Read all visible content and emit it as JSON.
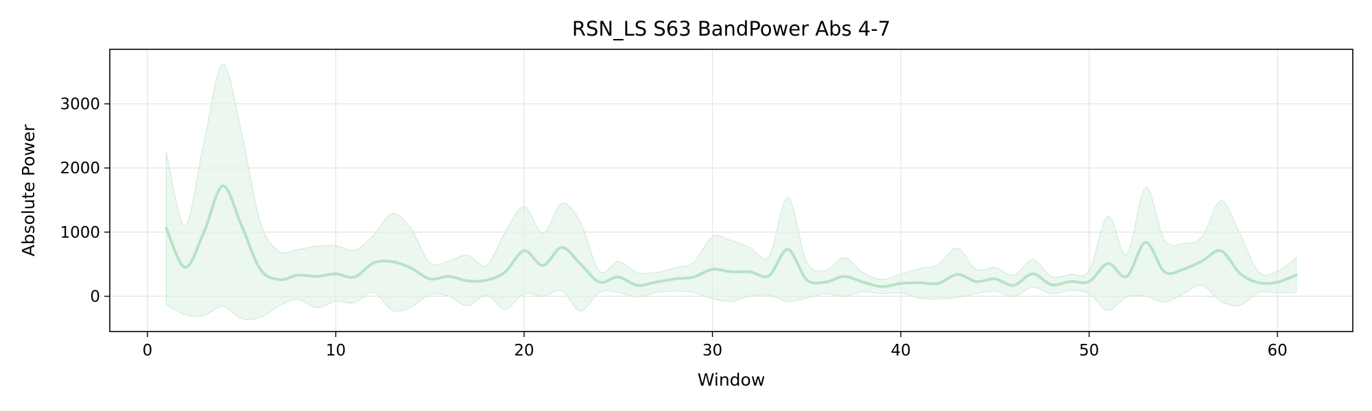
{
  "chart_data": {
    "type": "line",
    "title": "RSN_LS S63 BandPower Abs 4-7",
    "xlabel": "Window",
    "ylabel": "Absolute Power",
    "xlim": [
      -2,
      64
    ],
    "ylim": [
      -550,
      3850
    ],
    "xticks": [
      0,
      10,
      20,
      30,
      40,
      50,
      60
    ],
    "yticks": [
      0,
      1000,
      2000,
      3000
    ],
    "grid": true,
    "legend": "none",
    "series": [
      {
        "color": "#b5e3c5",
        "band_color": "#dff2e5",
        "x": [
          1,
          2,
          3,
          4,
          5,
          6,
          7,
          8,
          9,
          10,
          11,
          12,
          13,
          14,
          15,
          16,
          17,
          18,
          19,
          20,
          21,
          22,
          23,
          24,
          25,
          26,
          27,
          28,
          29,
          30,
          31,
          32,
          33,
          34,
          35,
          36,
          37,
          38,
          39,
          40,
          41,
          42,
          43,
          44,
          45,
          46,
          47,
          48,
          49,
          50,
          51,
          52,
          53,
          54,
          55,
          56,
          57,
          58,
          59,
          60,
          61
        ],
        "mean": [
          1060,
          450,
          1000,
          1720,
          1100,
          420,
          260,
          330,
          310,
          350,
          300,
          520,
          540,
          440,
          270,
          310,
          240,
          250,
          380,
          710,
          480,
          760,
          500,
          220,
          300,
          170,
          220,
          270,
          300,
          420,
          380,
          380,
          320,
          730,
          260,
          220,
          310,
          220,
          150,
          200,
          210,
          200,
          340,
          230,
          270,
          170,
          350,
          180,
          230,
          230,
          510,
          310,
          840,
          380,
          420,
          550,
          710,
          360,
          210,
          220,
          330
        ],
        "upper": [
          2250,
          1100,
          2400,
          3620,
          2550,
          1150,
          700,
          730,
          780,
          790,
          720,
          950,
          1290,
          1050,
          520,
          550,
          640,
          480,
          1000,
          1400,
          980,
          1450,
          1150,
          390,
          540,
          370,
          370,
          440,
          530,
          930,
          870,
          760,
          620,
          1540,
          540,
          400,
          600,
          370,
          260,
          350,
          430,
          500,
          750,
          420,
          450,
          330,
          570,
          310,
          340,
          400,
          1250,
          650,
          1700,
          880,
          820,
          930,
          1490,
          980,
          380,
          390,
          600
        ],
        "lower": [
          -130,
          -290,
          -300,
          -160,
          -350,
          -330,
          -150,
          -50,
          -180,
          -80,
          -100,
          60,
          -220,
          -170,
          30,
          0,
          -150,
          20,
          -200,
          40,
          0,
          80,
          -230,
          60,
          60,
          -10,
          60,
          80,
          60,
          -40,
          -80,
          0,
          20,
          -80,
          -30,
          40,
          0,
          70,
          40,
          50,
          -30,
          -40,
          -20,
          40,
          80,
          0,
          140,
          40,
          90,
          40,
          -220,
          -10,
          0,
          -90,
          40,
          170,
          -80,
          -140,
          60,
          50,
          60
        ]
      }
    ]
  }
}
